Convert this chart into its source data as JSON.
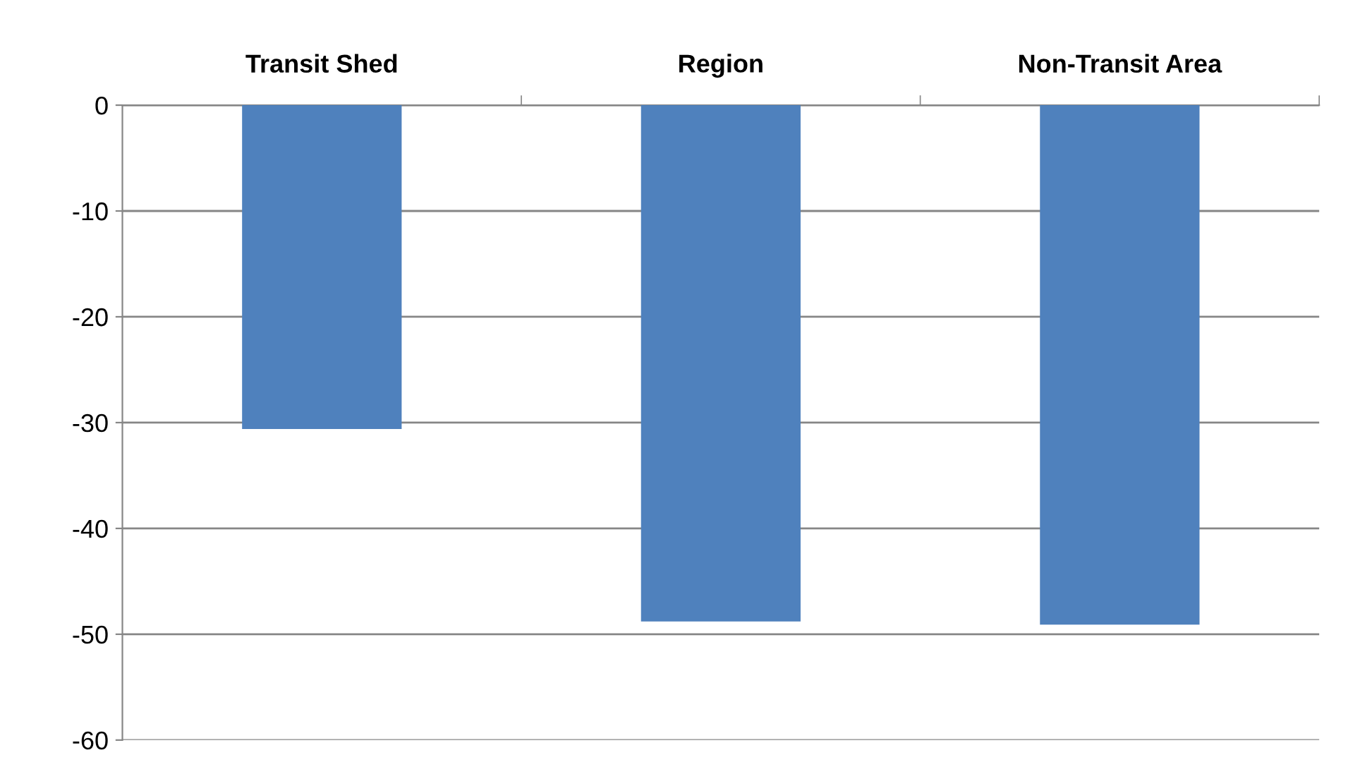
{
  "chart_data": {
    "type": "bar",
    "categories": [
      "Transit Shed",
      "Region",
      "Non-Transit Area"
    ],
    "values": [
      -30.6,
      -48.8,
      -49.1
    ],
    "color": "#4f81bd",
    "ylim": [
      -60,
      0
    ],
    "yticks": [
      0,
      -10,
      -20,
      -30,
      -40,
      -50,
      -60
    ],
    "grid": "y"
  }
}
